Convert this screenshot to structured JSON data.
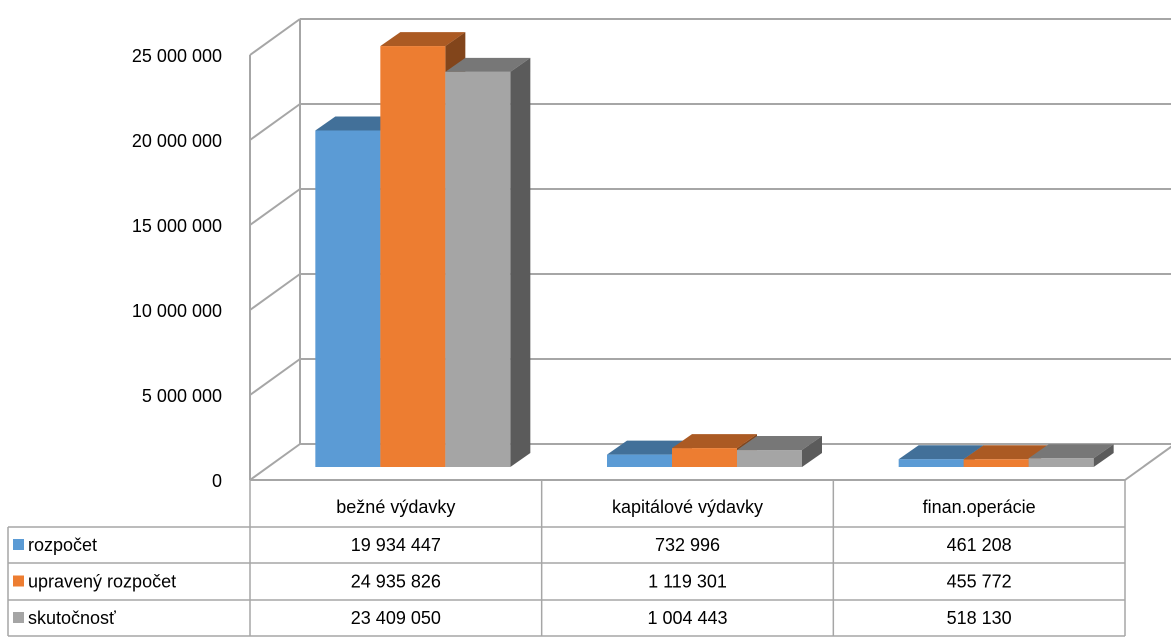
{
  "chart_data": {
    "type": "bar3d",
    "categories": [
      "bežné výdavky",
      "kapitálové výdavky",
      "finan.operácie"
    ],
    "series": [
      {
        "name": "rozpočet",
        "color": "#5b9bd5",
        "values": [
          19934447,
          732996,
          461208
        ],
        "value_labels": [
          "19 934 447",
          "732 996",
          "461 208"
        ]
      },
      {
        "name": "upravený rozpočet",
        "color": "#ed7d31",
        "values": [
          24935826,
          1119301,
          455772
        ],
        "value_labels": [
          "24 935 826",
          "1 119 301",
          "455 772"
        ]
      },
      {
        "name": "skutočnosť",
        "color": "#a5a5a5",
        "values": [
          23409050,
          1004443,
          518130
        ],
        "value_labels": [
          "23 409 050",
          "1 004 443",
          "518 130"
        ]
      }
    ],
    "ylim": [
      0,
      25000000
    ],
    "yticks": [
      {
        "value": 0,
        "label": "0"
      },
      {
        "value": 5000000,
        "label": "5 000 000"
      },
      {
        "value": 10000000,
        "label": "10 000 000"
      },
      {
        "value": 15000000,
        "label": "15 000 000"
      },
      {
        "value": 20000000,
        "label": "20 000 000"
      },
      {
        "value": 25000000,
        "label": "25 000 000"
      }
    ],
    "grid": true,
    "legend": "table"
  }
}
